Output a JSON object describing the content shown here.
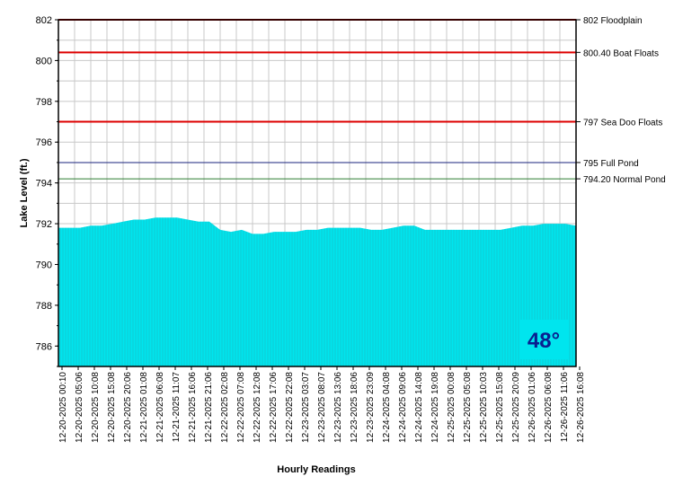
{
  "chart_data": {
    "type": "area",
    "xlabel": "Hourly Readings",
    "ylabel": "Lake Level (ft.)",
    "ylim": [
      785,
      802
    ],
    "y_ticks": [
      786,
      788,
      790,
      792,
      794,
      796,
      798,
      800,
      802
    ],
    "grid": true,
    "fill_color": "#00e5ee",
    "x_ticks": [
      "12-20-2025 00:10",
      "12-20-2025 05:06",
      "12-20-2025 10:08",
      "12-20-2025 15:08",
      "12-20-2025 20:06",
      "12-21-2025 01:08",
      "12-21-2025 06:08",
      "12-21-2025 11:07",
      "12-21-2025 16:06",
      "12-21-2025 21:06",
      "12-22-2025 02:08",
      "12-22-2025 07:08",
      "12-22-2025 12:08",
      "12-22-2025 17:06",
      "12-22-2025 22:08",
      "12-23-2025 03:07",
      "12-23-2025 08:07",
      "12-23-2025 13:06",
      "12-23-2025 18:06",
      "12-23-2025 23:09",
      "12-24-2025 04:08",
      "12-24-2025 09:06",
      "12-24-2025 14:08",
      "12-24-2025 19:08",
      "12-25-2025 00:08",
      "12-25-2025 05:08",
      "12-25-2025 10:03",
      "12-25-2025 15:08",
      "12-25-2025 20:09",
      "12-26-2025 01:06",
      "12-26-2025 06:08",
      "12-26-2025 11:06",
      "12-26-2025 16:08"
    ],
    "series": [
      {
        "values": [
          791.8,
          791.8,
          791.8,
          791.9,
          791.9,
          792.0,
          792.1,
          792.2,
          792.2,
          792.3,
          792.3,
          792.3,
          792.2,
          792.1,
          792.1,
          791.7,
          791.6,
          791.7,
          791.5,
          791.5,
          791.6,
          791.6,
          791.6,
          791.7,
          791.7,
          791.8,
          791.8,
          791.8,
          791.8,
          791.7,
          791.7,
          791.8,
          791.9,
          791.9,
          791.7,
          791.7,
          791.7,
          791.7,
          791.7,
          791.7,
          791.7,
          791.7,
          791.8,
          791.9,
          791.9,
          792.0,
          792.0,
          792.0,
          791.9
        ]
      }
    ],
    "reference_lines": [
      {
        "value": 802,
        "label": "802 Floodplain",
        "color": "#dd0000"
      },
      {
        "value": 800.4,
        "label": "800.40 Boat Floats",
        "color": "#dd0000"
      },
      {
        "value": 797,
        "label": "797 Sea Doo Floats",
        "color": "#dd0000"
      },
      {
        "value": 795,
        "label": "795 Full Pond",
        "color": "#1a237e"
      },
      {
        "value": 794.2,
        "label": "794.20 Normal Pond",
        "color": "#2e7d32"
      }
    ]
  },
  "temperature": {
    "label": "48°",
    "bg": "#00e5ee",
    "color": "#0a1f8f"
  }
}
